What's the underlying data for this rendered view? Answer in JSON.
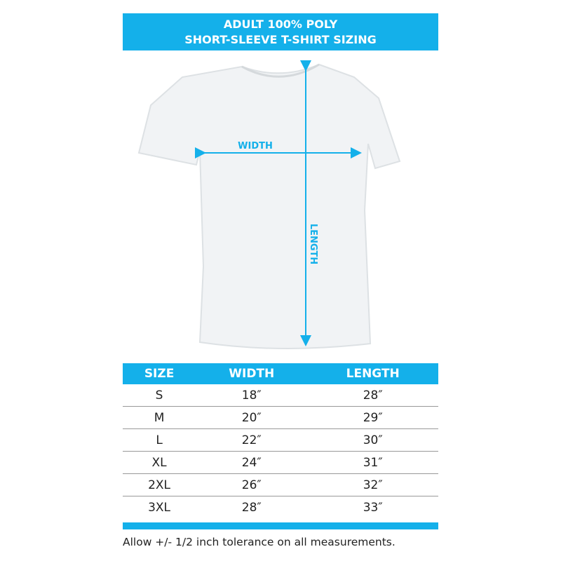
{
  "header": {
    "line1": "ADULT 100% POLY",
    "line2": "SHORT-SLEEVE T-SHIRT SIZING"
  },
  "diagram": {
    "width_label": "WIDTH",
    "length_label": "LENGTH",
    "accent_color": "#14b0ea"
  },
  "table": {
    "columns": [
      "SIZE",
      "WIDTH",
      "LENGTH"
    ],
    "rows": [
      [
        "S",
        "18″",
        "28″"
      ],
      [
        "M",
        "20″",
        "29″"
      ],
      [
        "L",
        "22″",
        "30″"
      ],
      [
        "XL",
        "24″",
        "31″"
      ],
      [
        "2XL",
        "26″",
        "32″"
      ],
      [
        "3XL",
        "28″",
        "33″"
      ]
    ]
  },
  "footer": {
    "note": "Allow +/- 1/2 inch tolerance on all measurements."
  }
}
